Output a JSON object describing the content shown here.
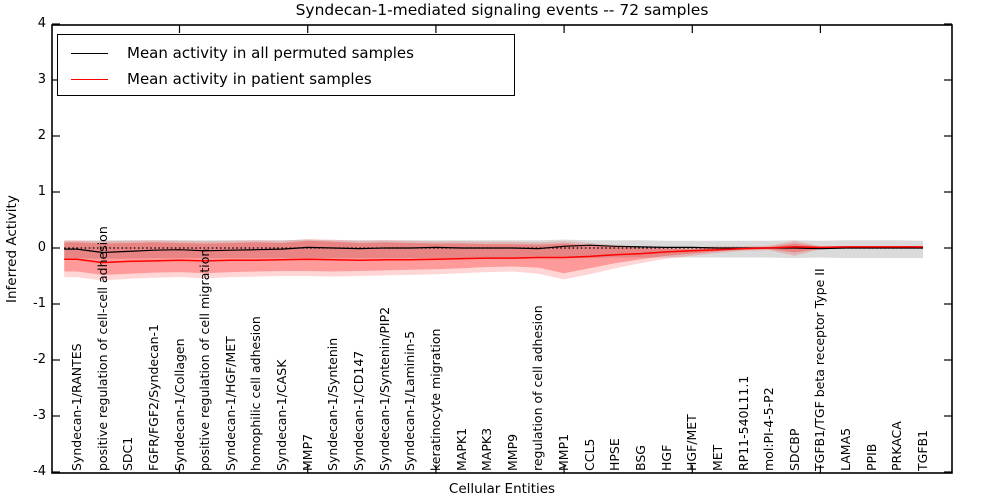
{
  "title": "Syndecan-1-mediated signaling events -- 72 samples",
  "axes": {
    "xlabel": "Cellular Entities",
    "ylabel": "Inferred Activity"
  },
  "legend": {
    "items": [
      {
        "label": "Mean activity in all permuted samples",
        "color": "#000000"
      },
      {
        "label": "Mean activity in patient samples",
        "color": "#ff0000"
      }
    ]
  },
  "chart_data": {
    "type": "line",
    "title": "Syndecan-1-mediated signaling events -- 72 samples",
    "xlabel": "Cellular Entities",
    "ylabel": "Inferred Activity",
    "ylim": [
      -4,
      4
    ],
    "yticks": [
      4,
      3,
      2,
      1,
      0,
      -1,
      -2,
      -3,
      -4
    ],
    "grid": false,
    "legend_position": "upper left",
    "zero_line": 0,
    "categories": [
      "Syndecan-1/RANTES",
      "positive regulation of cell-cell adhesion",
      "SDC1",
      "FGFR/FGF2/Syndecan-1",
      "Syndecan-1/Collagen",
      "positive regulation of cell migration",
      "Syndecan-1/HGF/MET",
      "homophilic cell adhesion",
      "Syndecan-1/CASK",
      "MMP7",
      "Syndecan-1/Syntenin",
      "Syndecan-1/CD147",
      "Syndecan-1/Syntenin/PIP2",
      "Syndecan-1/Laminin-5",
      "keratinocyte migration",
      "MAPK1",
      "MAPK3",
      "MMP9",
      "regulation of cell adhesion",
      "MMP1",
      "CCL5",
      "HPSE",
      "BSG",
      "HGF",
      "HGF/MET",
      "MET",
      "RP11-540L11.1",
      "mol:PI-4-5-P2",
      "SDCBP",
      "TGFB1/TGF beta receptor Type II",
      "LAMA5",
      "PPIB",
      "PRKACA",
      "TGFB1"
    ],
    "series": [
      {
        "name": "Mean activity in all permuted samples",
        "color": "#000000",
        "width": 1.2,
        "values": [
          -0.02,
          -0.08,
          -0.06,
          -0.04,
          -0.03,
          -0.05,
          -0.04,
          -0.03,
          -0.02,
          0.01,
          0.0,
          -0.01,
          0.0,
          0.0,
          0.01,
          0.0,
          0.0,
          0.0,
          -0.01,
          0.03,
          0.05,
          0.03,
          0.02,
          0.01,
          0.01,
          0.0,
          0.0,
          0.0,
          0.0,
          -0.01,
          0.0,
          0.0,
          0.0,
          0.0
        ]
      },
      {
        "name": "Mean activity in patient samples",
        "color": "#ff0000",
        "width": 1.5,
        "values": [
          -0.2,
          -0.26,
          -0.24,
          -0.23,
          -0.22,
          -0.23,
          -0.22,
          -0.22,
          -0.21,
          -0.2,
          -0.21,
          -0.22,
          -0.21,
          -0.21,
          -0.2,
          -0.19,
          -0.18,
          -0.18,
          -0.17,
          -0.17,
          -0.15,
          -0.12,
          -0.1,
          -0.07,
          -0.05,
          -0.03,
          -0.01,
          0.0,
          0.02,
          0.01,
          0.02,
          0.02,
          0.02,
          0.02
        ]
      }
    ],
    "bands": [
      {
        "name": "permuted-samples-range",
        "color": "#bbbbbb",
        "opacity": 0.55,
        "top": [
          0.13,
          0.14,
          0.14,
          0.14,
          0.14,
          0.14,
          0.14,
          0.14,
          0.14,
          0.15,
          0.14,
          0.14,
          0.14,
          0.14,
          0.14,
          0.14,
          0.14,
          0.14,
          0.14,
          0.15,
          0.14,
          0.14,
          0.14,
          0.13,
          0.13,
          0.13,
          0.13,
          0.13,
          0.14,
          0.13,
          0.14,
          0.14,
          0.14,
          0.13
        ],
        "bottom": [
          -0.18,
          -0.19,
          -0.19,
          -0.18,
          -0.18,
          -0.18,
          -0.18,
          -0.18,
          -0.18,
          -0.18,
          -0.18,
          -0.18,
          -0.18,
          -0.18,
          -0.18,
          -0.18,
          -0.18,
          -0.17,
          -0.17,
          -0.18,
          -0.18,
          -0.17,
          -0.17,
          -0.17,
          -0.17,
          -0.17,
          -0.17,
          -0.17,
          -0.18,
          -0.17,
          -0.18,
          -0.18,
          -0.18,
          -0.18
        ]
      },
      {
        "name": "patient-samples-range-outer",
        "color": "#ff0000",
        "opacity": 0.16,
        "top": [
          0.14,
          0.12,
          0.13,
          0.14,
          0.13,
          0.12,
          0.13,
          0.14,
          0.13,
          0.16,
          0.15,
          0.13,
          0.14,
          0.13,
          0.12,
          0.12,
          0.11,
          0.11,
          0.1,
          0.12,
          0.09,
          0.05,
          0.03,
          0.02,
          0.01,
          0.03,
          0.03,
          0.04,
          0.13,
          0.03,
          0.03,
          0.03,
          0.03,
          0.03
        ],
        "bottom": [
          -0.52,
          -0.58,
          -0.55,
          -0.53,
          -0.52,
          -0.54,
          -0.52,
          -0.51,
          -0.5,
          -0.5,
          -0.51,
          -0.5,
          -0.49,
          -0.48,
          -0.47,
          -0.45,
          -0.43,
          -0.42,
          -0.46,
          -0.56,
          -0.47,
          -0.36,
          -0.27,
          -0.19,
          -0.14,
          -0.09,
          -0.05,
          -0.04,
          -0.14,
          -0.02,
          0.0,
          0.0,
          0.0,
          0.0
        ]
      },
      {
        "name": "patient-samples-range-inner",
        "color": "#ff0000",
        "opacity": 0.28,
        "top": [
          0.1,
          0.08,
          0.09,
          0.1,
          0.09,
          0.08,
          0.09,
          0.1,
          0.09,
          0.13,
          0.11,
          0.09,
          0.1,
          0.09,
          0.08,
          0.08,
          0.07,
          0.07,
          0.06,
          0.08,
          0.05,
          0.02,
          0.0,
          -0.01,
          -0.02,
          0.0,
          0.01,
          0.02,
          0.08,
          0.02,
          0.02,
          0.02,
          0.02,
          0.02
        ],
        "bottom": [
          -0.42,
          -0.48,
          -0.46,
          -0.44,
          -0.43,
          -0.45,
          -0.43,
          -0.42,
          -0.41,
          -0.41,
          -0.42,
          -0.41,
          -0.4,
          -0.39,
          -0.38,
          -0.36,
          -0.34,
          -0.33,
          -0.35,
          -0.45,
          -0.36,
          -0.27,
          -0.2,
          -0.14,
          -0.1,
          -0.06,
          -0.03,
          -0.02,
          -0.08,
          -0.01,
          0.01,
          0.01,
          0.01,
          0.01
        ]
      }
    ]
  }
}
